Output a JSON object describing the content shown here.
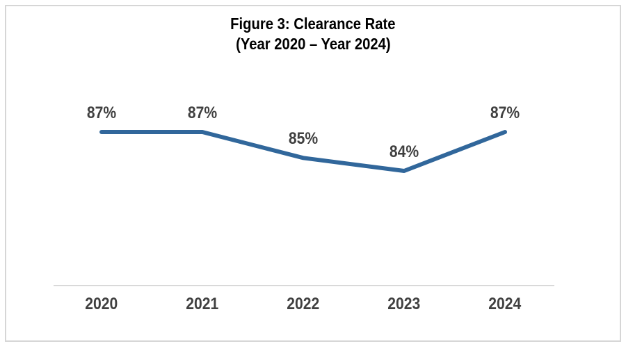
{
  "chart_data": {
    "type": "line",
    "title_line1": "Figure 3: Clearance Rate",
    "title_line2": "(Year 2020 – Year 2024)",
    "categories": [
      "2020",
      "2021",
      "2022",
      "2023",
      "2024"
    ],
    "values": [
      87,
      87,
      85,
      84,
      87
    ],
    "data_labels": [
      "87%",
      "87%",
      "85%",
      "84%",
      "87%"
    ],
    "ylabel": "",
    "xlabel": "",
    "gridlines": false,
    "legend_position": "none",
    "y_axis_visible": false,
    "colors": {
      "line": "#31679B",
      "labels": "#404040",
      "axis": "#D9D9D9",
      "frame": "#D6D6D6",
      "title": "#000000"
    }
  }
}
